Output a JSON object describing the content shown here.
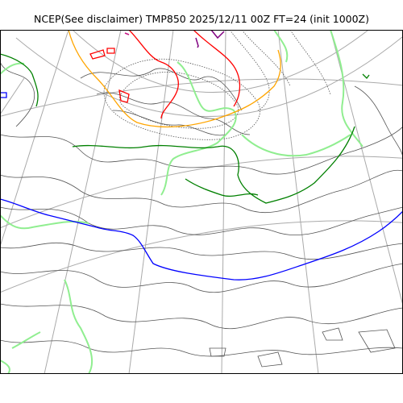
{
  "title": "NCEP(See disclaimer) TMP850 2025/12/11 00Z FT=24 (init 1000Z)",
  "map": {
    "colors": {
      "background": "#ffffff",
      "graticule": "#aaaaaa",
      "coast": "#444444",
      "isotherm_thin": "#555555",
      "contour_lightgreen": "#90ee90",
      "contour_green": "#008000",
      "contour_orange": "#ffa500",
      "contour_red": "#ff0000",
      "contour_blue": "#0000ff",
      "contour_purple": "#800080",
      "contour_magenta": "#c71585",
      "frame": "#000000"
    }
  }
}
